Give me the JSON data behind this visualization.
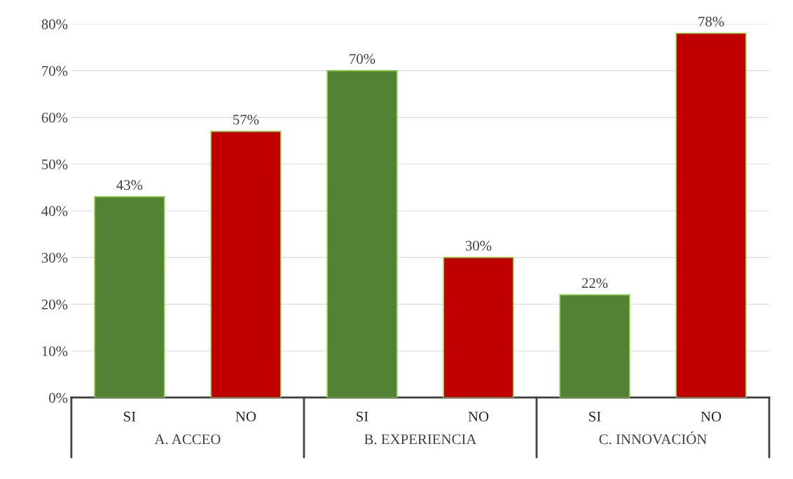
{
  "chart_data": {
    "type": "bar",
    "categories": [
      "SI",
      "NO",
      "SI",
      "NO",
      "SI",
      "NO"
    ],
    "values": [
      43,
      57,
      70,
      30,
      22,
      78
    ],
    "colors": [
      "#548235",
      "#c00000",
      "#548235",
      "#c00000",
      "#548235",
      "#c00000"
    ],
    "value_labels": [
      "43%",
      "57%",
      "70%",
      "30%",
      "22%",
      "78%"
    ],
    "ylim": [
      0,
      80
    ],
    "yticks": [
      {
        "value": 0,
        "label": "0%"
      },
      {
        "value": 10,
        "label": "10%"
      },
      {
        "value": 20,
        "label": "20%"
      },
      {
        "value": 30,
        "label": "30%"
      },
      {
        "value": 40,
        "label": "40%"
      },
      {
        "value": 50,
        "label": "50%"
      },
      {
        "value": 60,
        "label": "60%"
      },
      {
        "value": 70,
        "label": "70%"
      },
      {
        "value": 80,
        "label": "80%"
      }
    ],
    "grid": "y",
    "annotations": [
      "A. ACCEO",
      "B. EXPERIENCIA",
      "C. INNOVACIÓN"
    ]
  }
}
